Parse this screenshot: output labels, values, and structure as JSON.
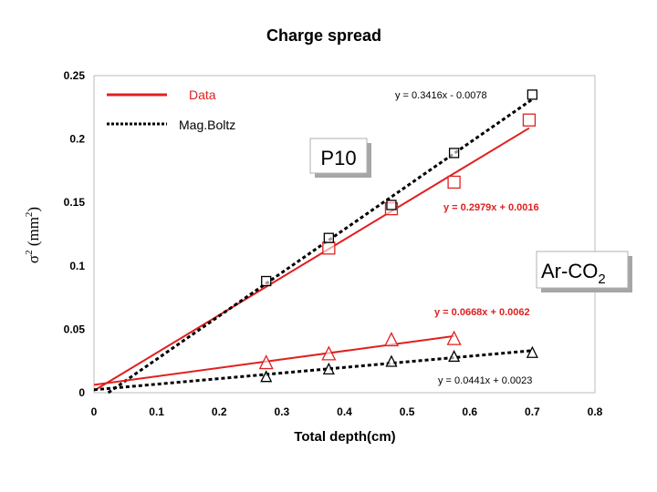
{
  "chart_data": {
    "type": "scatter",
    "title": "Charge spread",
    "xlabel": "Total depth(cm)",
    "ylabel_symbol": "σ",
    "ylabel_sup": "2",
    "ylabel_unit": " (mm",
    "ylabel_unit_sup": "2",
    "ylabel_close": ")",
    "xlim": [
      0,
      0.8
    ],
    "ylim": [
      0,
      0.25
    ],
    "xticks": [
      "0",
      "0.1",
      "0.2",
      "0.3",
      "0.4",
      "0.5",
      "0.6",
      "0.7",
      "0.8"
    ],
    "yticks": [
      "0",
      "0.05",
      "0.1",
      "0.15",
      "0.2",
      "0.25"
    ],
    "legend": {
      "data_label": "Data",
      "magboltz_label": "Mag.Boltz"
    },
    "group_labels": {
      "p10": "P10",
      "arco2_main": "Ar-CO",
      "arco2_sub": "2"
    },
    "colors": {
      "data": "#e02020",
      "magboltz": "#000000"
    },
    "series": [
      {
        "name": "P10 Data",
        "marker": "square",
        "color": "#e02020",
        "points": [
          [
            0.375,
            0.114
          ],
          [
            0.475,
            0.145
          ],
          [
            0.575,
            0.166
          ],
          [
            0.695,
            0.215
          ]
        ],
        "fit": {
          "slope": 0.2979,
          "intercept": 0.0016,
          "x_range": [
            0.0,
            0.695
          ]
        },
        "equation": "y = 0.2979x + 0.0016"
      },
      {
        "name": "P10 MagBoltz",
        "marker": "square",
        "color": "#000000",
        "points": [
          [
            0.275,
            0.088
          ],
          [
            0.375,
            0.122
          ],
          [
            0.475,
            0.148
          ],
          [
            0.575,
            0.189
          ],
          [
            0.7,
            0.235
          ]
        ],
        "fit": {
          "slope": 0.3416,
          "intercept": -0.0078,
          "x_range": [
            0.0,
            0.7
          ]
        },
        "equation": "y = 0.3416x - 0.0078"
      },
      {
        "name": "Ar-CO2 Data",
        "marker": "triangle",
        "color": "#e02020",
        "points": [
          [
            0.275,
            0.023
          ],
          [
            0.375,
            0.03
          ],
          [
            0.475,
            0.041
          ],
          [
            0.575,
            0.042
          ]
        ],
        "fit": {
          "slope": 0.0668,
          "intercept": 0.0062,
          "x_range": [
            0.0,
            0.575
          ]
        },
        "equation": "y = 0.0668x + 0.0062"
      },
      {
        "name": "Ar-CO2 MagBoltz",
        "marker": "triangle",
        "color": "#000000",
        "points": [
          [
            0.275,
            0.012
          ],
          [
            0.375,
            0.018
          ],
          [
            0.475,
            0.024
          ],
          [
            0.575,
            0.028
          ],
          [
            0.7,
            0.031
          ]
        ],
        "fit": {
          "slope": 0.0441,
          "intercept": 0.0023,
          "x_range": [
            0.0,
            0.7
          ]
        },
        "equation": "y = 0.0441x + 0.0023"
      }
    ]
  }
}
